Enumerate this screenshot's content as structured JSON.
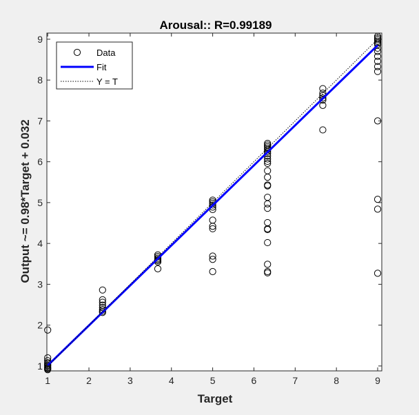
{
  "chart_data": {
    "type": "scatter",
    "title": "Arousal:: R=0.99189",
    "xlabel": "Target",
    "ylabel": "Output ~= 0.98*Target + 0.032",
    "xlim": [
      0.98,
      9.1
    ],
    "ylim": [
      0.88,
      9.15
    ],
    "xticks": [
      "1",
      "2",
      "3",
      "4",
      "5",
      "6",
      "7",
      "8",
      "9"
    ],
    "yticks": [
      "1",
      "2",
      "3",
      "4",
      "5",
      "6",
      "7",
      "8",
      "9"
    ],
    "grid": false,
    "legend_position": "top-left",
    "fit": {
      "slope": 0.98,
      "intercept": 0.032
    },
    "series": [
      {
        "name": "Data",
        "marker": "circle",
        "color": "#000000",
        "points": [
          [
            1,
            1.88
          ],
          [
            1,
            1.2
          ],
          [
            1,
            1.13
          ],
          [
            1,
            1.08
          ],
          [
            1,
            1.05
          ],
          [
            1,
            1.02
          ],
          [
            1,
            1.0
          ],
          [
            1,
            0.97
          ],
          [
            1,
            0.95
          ],
          [
            1,
            0.93
          ],
          [
            1,
            0.91
          ],
          [
            2.33,
            2.86
          ],
          [
            2.33,
            2.62
          ],
          [
            2.33,
            2.56
          ],
          [
            2.33,
            2.49
          ],
          [
            2.33,
            2.43
          ],
          [
            2.33,
            2.38
          ],
          [
            2.33,
            2.34
          ],
          [
            2.33,
            2.31
          ],
          [
            3.67,
            3.72
          ],
          [
            3.67,
            3.68
          ],
          [
            3.67,
            3.64
          ],
          [
            3.67,
            3.61
          ],
          [
            3.67,
            3.58
          ],
          [
            3.67,
            3.55
          ],
          [
            3.67,
            3.38
          ],
          [
            5,
            5.06
          ],
          [
            5,
            5.02
          ],
          [
            5,
            4.98
          ],
          [
            5,
            4.94
          ],
          [
            5,
            4.89
          ],
          [
            5,
            4.83
          ],
          [
            5,
            4.57
          ],
          [
            5,
            4.42
          ],
          [
            5,
            4.36
          ],
          [
            5,
            3.69
          ],
          [
            5,
            3.61
          ],
          [
            5,
            3.31
          ],
          [
            6.33,
            6.45
          ],
          [
            6.33,
            6.41
          ],
          [
            6.33,
            6.37
          ],
          [
            6.33,
            6.33
          ],
          [
            6.33,
            6.29
          ],
          [
            6.33,
            6.25
          ],
          [
            6.33,
            6.2
          ],
          [
            6.33,
            6.14
          ],
          [
            6.33,
            6.07
          ],
          [
            6.33,
            6.01
          ],
          [
            6.33,
            5.96
          ],
          [
            6.33,
            5.78
          ],
          [
            6.33,
            5.62
          ],
          [
            6.33,
            5.43
          ],
          [
            6.33,
            5.41
          ],
          [
            6.33,
            5.13
          ],
          [
            6.33,
            4.97
          ],
          [
            6.33,
            4.86
          ],
          [
            6.33,
            4.51
          ],
          [
            6.33,
            4.36
          ],
          [
            6.33,
            4.34
          ],
          [
            6.33,
            4.02
          ],
          [
            6.33,
            3.49
          ],
          [
            6.33,
            3.31
          ],
          [
            6.33,
            3.28
          ],
          [
            7.67,
            7.79
          ],
          [
            7.67,
            7.68
          ],
          [
            7.67,
            7.62
          ],
          [
            7.67,
            7.56
          ],
          [
            7.67,
            7.51
          ],
          [
            7.67,
            7.38
          ],
          [
            7.67,
            6.78
          ],
          [
            9,
            9.07
          ],
          [
            9,
            9.03
          ],
          [
            9,
            8.99
          ],
          [
            9,
            8.95
          ],
          [
            9,
            8.91
          ],
          [
            9,
            8.87
          ],
          [
            9,
            8.78
          ],
          [
            9,
            8.7
          ],
          [
            9,
            8.58
          ],
          [
            9,
            8.46
          ],
          [
            9,
            8.33
          ],
          [
            9,
            8.21
          ],
          [
            9,
            7.0
          ],
          [
            9,
            5.08
          ],
          [
            9,
            4.84
          ],
          [
            9,
            3.27
          ]
        ]
      },
      {
        "name": "Fit",
        "type": "line",
        "color": "#0000ff",
        "x": [
          1,
          9
        ],
        "y": [
          1.012,
          8.852
        ]
      },
      {
        "name": "Y = T",
        "type": "line",
        "style": "dotted",
        "color": "#000000",
        "x": [
          1,
          9
        ],
        "y": [
          1,
          9
        ]
      }
    ]
  }
}
